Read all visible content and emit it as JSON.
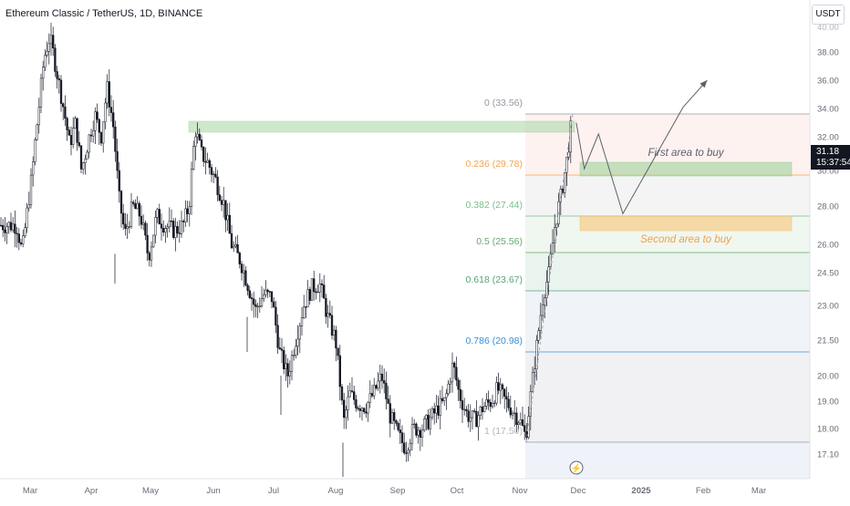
{
  "header": {
    "symbol_title": "Ethereum Classic / TetherUS, 1D, BINANCE",
    "currency": "USDT"
  },
  "price_badge": {
    "price": "31.18",
    "countdown": "15:37:54"
  },
  "colors": {
    "bull": "#131722",
    "bear": "#131722",
    "axis_text": "#6a6d78",
    "fib_236": "#f7a34a",
    "fib_382": "#7bbf8a",
    "fib_05": "#64a96d",
    "fib_618": "#5aa37a",
    "fib_786": "#3b8fd4",
    "fib_gray": "#9598a1"
  },
  "chart_data": {
    "type": "candlestick",
    "title": "Ethereum Classic / TetherUS, 1D, BINANCE",
    "y_axis": {
      "ticks": [
        "38.00",
        "36.00",
        "34.00",
        "32.00",
        "30.00",
        "28.00",
        "26.00",
        "24.50",
        "23.00",
        "21.50",
        "20.00",
        "19.00",
        "18.00",
        "17.10"
      ],
      "partial_top": "40.00"
    },
    "x_axis": {
      "ticks": [
        "Mar",
        "Apr",
        "May",
        "Jun",
        "Jul",
        "Aug",
        "Sep",
        "Oct",
        "Nov",
        "Dec",
        "2025",
        "Feb",
        "Mar"
      ]
    },
    "fib_levels": [
      {
        "label": "0 (33.56)",
        "price": 33.56
      },
      {
        "label": "0.236 (29.78)",
        "price": 29.78
      },
      {
        "label": "0.382 (27.44)",
        "price": 27.44
      },
      {
        "label": "0.5 (25.56)",
        "price": 25.56
      },
      {
        "label": "0.618 (23.67)",
        "price": 23.67
      },
      {
        "label": "0.786 (20.98)",
        "price": 20.98
      },
      {
        "label": "1 (17.50)",
        "price": 17.5
      }
    ],
    "annotations": {
      "first_area": "First area to buy",
      "second_area": "Second area to buy"
    },
    "price_path": [
      [
        "Feb 20",
        27.0
      ],
      [
        "Feb 24",
        25.6
      ],
      [
        "Feb 28",
        27.8
      ],
      [
        "Mar 2",
        29.8
      ],
      [
        "Mar 5",
        33.5
      ],
      [
        "Mar 8",
        37.5
      ],
      [
        "Mar 11",
        39.2
      ],
      [
        "Mar 14",
        37.0
      ],
      [
        "Mar 18",
        34.0
      ],
      [
        "Mar 21",
        31.5
      ],
      [
        "Mar 24",
        33.0
      ],
      [
        "Mar 27",
        30.0
      ],
      [
        "Mar 30",
        31.5
      ],
      [
        "Apr 3",
        33.5
      ],
      [
        "Apr 6",
        32.0
      ],
      [
        "Apr 9",
        35.5
      ],
      [
        "Apr 12",
        33.0
      ],
      [
        "Apr 15",
        28.5
      ],
      [
        "Apr 18",
        26.5
      ],
      [
        "Apr 22",
        28.0
      ],
      [
        "Apr 26",
        27.5
      ],
      [
        "Apr 30",
        25.3
      ],
      [
        "May 4",
        27.5
      ],
      [
        "May 8",
        27.0
      ],
      [
        "May 13",
        26.7
      ],
      [
        "May 17",
        27.0
      ],
      [
        "May 20",
        28.0
      ],
      [
        "May 23",
        32.5
      ],
      [
        "May 26",
        31.0
      ],
      [
        "May 29",
        30.5
      ],
      [
        "Jun 2",
        29.5
      ],
      [
        "Jun 6",
        28.2
      ],
      [
        "Jun 10",
        26.0
      ],
      [
        "Jun 14",
        25.2
      ],
      [
        "Jun 18",
        24.0
      ],
      [
        "Jun 22",
        22.8
      ],
      [
        "Jun 26",
        23.5
      ],
      [
        "Jun 30",
        23.4
      ],
      [
        "Jul 4",
        21.0
      ],
      [
        "Jul 8",
        20.0
      ],
      [
        "Jul 12",
        21.5
      ],
      [
        "Jul 16",
        23.0
      ],
      [
        "Jul 20",
        23.8
      ],
      [
        "Jul 24",
        24.0
      ],
      [
        "Jul 28",
        22.5
      ],
      [
        "Aug 1",
        21.5
      ],
      [
        "Aug 5",
        18.2
      ],
      [
        "Aug 8",
        19.3
      ],
      [
        "Aug 12",
        18.9
      ],
      [
        "Aug 16",
        18.8
      ],
      [
        "Aug 20",
        19.3
      ],
      [
        "Aug 24",
        20.0
      ],
      [
        "Aug 28",
        18.5
      ],
      [
        "Sep 1",
        17.8
      ],
      [
        "Sep 5",
        17.3
      ],
      [
        "Sep 9",
        18.0
      ],
      [
        "Sep 13",
        18.0
      ],
      [
        "Sep 17",
        18.3
      ],
      [
        "Sep 21",
        18.7
      ],
      [
        "Sep 25",
        19.0
      ],
      [
        "Sep 29",
        20.5
      ],
      [
        "Oct 2",
        19.3
      ],
      [
        "Oct 6",
        18.5
      ],
      [
        "Oct 10",
        18.3
      ],
      [
        "Oct 14",
        18.8
      ],
      [
        "Oct 18",
        19.0
      ],
      [
        "Oct 21",
        19.5
      ],
      [
        "Oct 25",
        19.0
      ],
      [
        "Oct 29",
        18.6
      ],
      [
        "Nov 1",
        18.3
      ],
      [
        "Nov 4",
        17.7
      ],
      [
        "Nov 7",
        19.5
      ],
      [
        "Nov 10",
        21.5
      ],
      [
        "Nov 13",
        23.5
      ],
      [
        "Nov 16",
        24.5
      ],
      [
        "Nov 19",
        27.0
      ],
      [
        "Nov 22",
        28.5
      ],
      [
        "Nov 25",
        30.5
      ],
      [
        "Nov 28",
        33.4
      ],
      [
        "Nov 30",
        31.2
      ]
    ],
    "projection_path": [
      [
        "Nov 30",
        33.0
      ],
      [
        "Dec 4",
        30.1
      ],
      [
        "Dec 11",
        32.2
      ],
      [
        "Dec 23",
        27.6
      ],
      [
        "Jan 22",
        34.1
      ],
      [
        "Feb 3",
        36.0
      ]
    ]
  }
}
